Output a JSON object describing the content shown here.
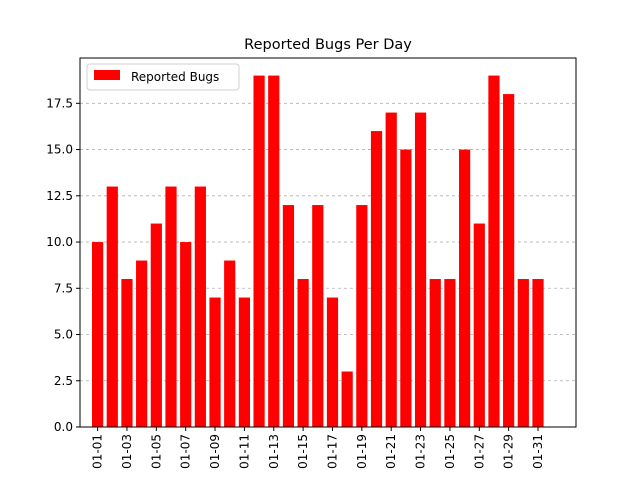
{
  "chart_data": {
    "type": "bar",
    "title": "Reported Bugs Per Day",
    "xlabel": "",
    "ylabel": "",
    "categories": [
      "01-01",
      "01-02",
      "01-03",
      "01-04",
      "01-05",
      "01-06",
      "01-07",
      "01-08",
      "01-09",
      "01-10",
      "01-11",
      "01-12",
      "01-13",
      "01-14",
      "01-15",
      "01-16",
      "01-17",
      "01-18",
      "01-19",
      "01-20",
      "01-21",
      "01-22",
      "01-23",
      "01-24",
      "01-25",
      "01-26",
      "01-27",
      "01-28",
      "01-29",
      "01-30",
      "01-31"
    ],
    "x_tick_labels": [
      "01-01",
      "01-03",
      "01-05",
      "01-07",
      "01-09",
      "01-11",
      "01-13",
      "01-15",
      "01-17",
      "01-19",
      "01-21",
      "01-23",
      "01-25",
      "01-27",
      "01-29",
      "01-31"
    ],
    "series": [
      {
        "name": "Reported Bugs",
        "color": "#ff0000",
        "values": [
          10,
          13,
          8,
          9,
          11,
          13,
          10,
          13,
          7,
          9,
          7,
          19,
          19,
          12,
          8,
          12,
          7,
          3,
          12,
          16,
          17,
          15,
          17,
          8,
          8,
          15,
          11,
          19,
          18,
          8,
          8
        ]
      }
    ],
    "ylim": [
      0,
      19.95
    ],
    "y_ticks": [
      "0.0",
      "2.5",
      "5.0",
      "7.5",
      "10.0",
      "12.5",
      "15.0",
      "17.5"
    ],
    "grid": "y-dashed",
    "legend_position": "upper-left"
  }
}
